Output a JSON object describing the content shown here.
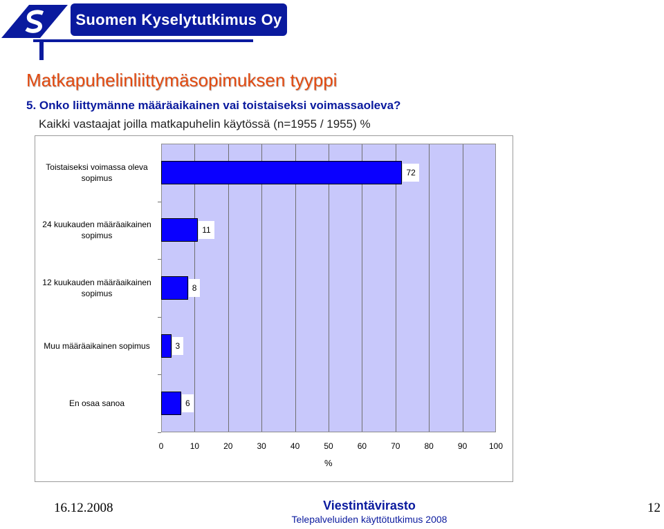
{
  "header": {
    "company": "Suomen Kyselytutkimus Oy",
    "logo_letter": "S"
  },
  "slide": {
    "title": "Matkapuhelinliittymäsopimuksen tyyppi",
    "question": "5. Onko liittymänne määräaikainen vai toistaiseksi voimassaoleva?",
    "subtitle": "Kaikki vastaajat joilla matkapuhelin käytössä (n=1955 / 1955) %"
  },
  "colors": {
    "bar": "#0a00ff",
    "plot_bg": "#c8c8fb",
    "title": "#e24a10",
    "brand": "#0a1a9e"
  },
  "chart_data": {
    "type": "bar",
    "orientation": "horizontal",
    "categories": [
      "Toistaiseksi voimassa oleva sopimus",
      "24 kuukauden määräaikainen sopimus",
      "12 kuukauden määräaikainen sopimus",
      "Muu määräaikainen sopimus",
      "En osaa sanoa"
    ],
    "values": [
      72,
      11,
      8,
      3,
      6
    ],
    "value_labels": [
      "72",
      "11",
      "8",
      "3",
      "6"
    ],
    "xlabel": "%",
    "xlim": [
      0,
      100
    ],
    "xticks": [
      "0",
      "10",
      "20",
      "30",
      "40",
      "50",
      "60",
      "70",
      "80",
      "90",
      "100"
    ],
    "grid": true
  },
  "footer": {
    "date": "16.12.2008",
    "organization": "Viestintävirasto",
    "study": "Telepalveluiden käyttötutkimus 2008",
    "page": "12"
  }
}
